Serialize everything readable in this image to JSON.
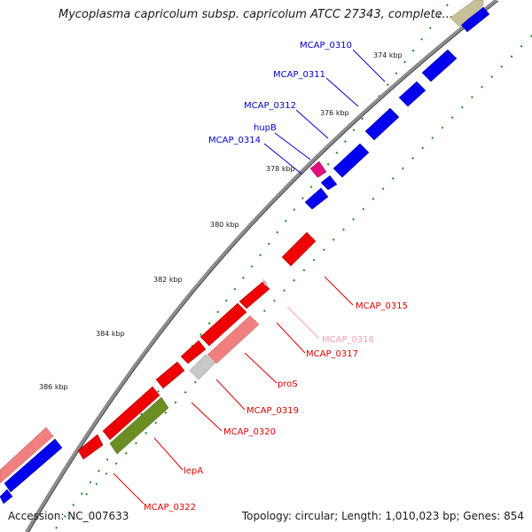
{
  "title": "Mycoplasma capricolum subsp. capricolum ATCC 27343, complete...",
  "footer": {
    "accession": "Accession: NC_007633",
    "summary": "Topology: circular; Length: 1,010,023 bp; Genes: 854"
  },
  "colors": {
    "forward": "#0000ee",
    "reverse": "#ee0000",
    "pseudo": "#f08080",
    "rna": "#6b8e23",
    "unknown": "#c0c0c0",
    "backbone": "#808080",
    "tick": "#006400",
    "label_forward": "#0000cc",
    "label_reverse": "#dd0000",
    "label_pseudo": "#f4a0b0"
  },
  "ticks": [
    {
      "label": "374 kbp"
    },
    {
      "label": "376 kbp"
    },
    {
      "label": "378 kbp"
    },
    {
      "label": "380 kbp"
    },
    {
      "label": "382 kbp"
    },
    {
      "label": "384 kbp"
    },
    {
      "label": "386 kbp"
    }
  ],
  "genes": [
    {
      "name": "MCAP_0310",
      "strand": "forward"
    },
    {
      "name": "MCAP_0311",
      "strand": "forward"
    },
    {
      "name": "MCAP_0312",
      "strand": "forward"
    },
    {
      "name": "hupB",
      "strand": "forward"
    },
    {
      "name": "MCAP_0314",
      "strand": "forward"
    },
    {
      "name": "MCAP_0315",
      "strand": "reverse"
    },
    {
      "name": "MCAP_0316",
      "strand": "pseudo"
    },
    {
      "name": "MCAP_0317",
      "strand": "reverse"
    },
    {
      "name": "proS",
      "strand": "reverse"
    },
    {
      "name": "MCAP_0319",
      "strand": "reverse"
    },
    {
      "name": "MCAP_0320",
      "strand": "reverse"
    },
    {
      "name": "lepA",
      "strand": "reverse"
    },
    {
      "name": "MCAP_0322",
      "strand": "reverse"
    }
  ]
}
